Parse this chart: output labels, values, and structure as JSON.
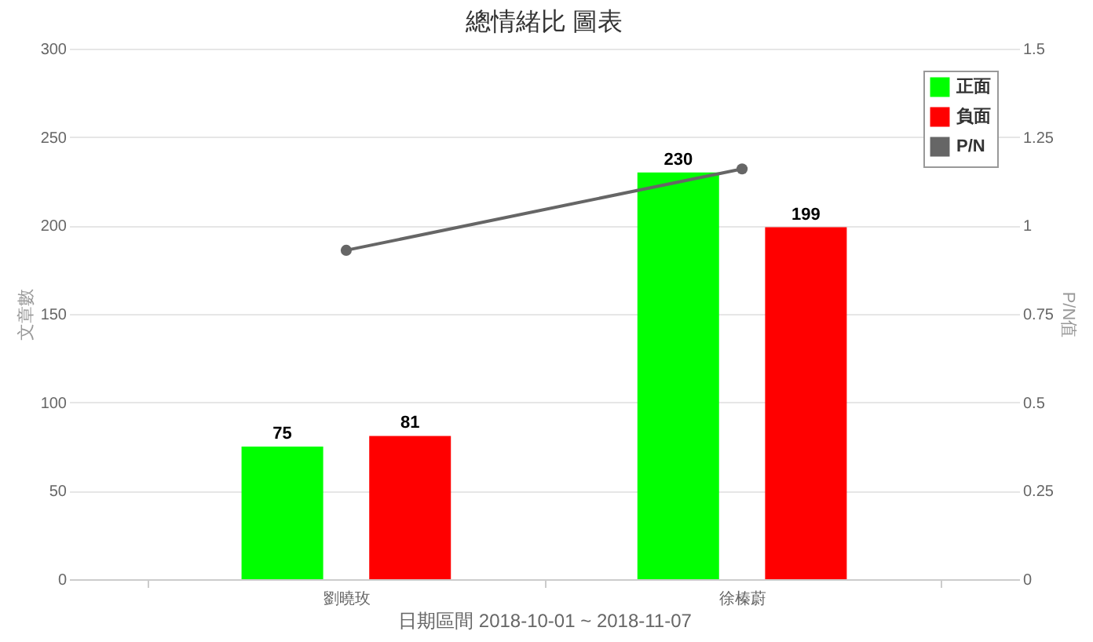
{
  "chart_data": {
    "type": "bar",
    "title": "總情緒比 圖表",
    "xlabel": "日期區間 2018-10-01 ~ 2018-11-07",
    "ylabel": "文章數",
    "y2label": "P/N值",
    "categories": [
      "劉曉玫",
      "徐榛蔚"
    ],
    "series": [
      {
        "name": "正面",
        "color": "#00ff00",
        "values": [
          75,
          230
        ],
        "value_labels": [
          "75",
          "230"
        ]
      },
      {
        "name": "負面",
        "color": "#ff0000",
        "values": [
          81,
          199
        ],
        "value_labels": [
          "81",
          "199"
        ]
      },
      {
        "name": "P/N",
        "type": "line",
        "axis": "y2",
        "color": "#666666",
        "values": [
          0.93,
          1.16
        ]
      }
    ],
    "ylim": [
      0,
      300
    ],
    "yticks": [
      0,
      50,
      100,
      150,
      200,
      250,
      300
    ],
    "y2lim": [
      0,
      1.5
    ],
    "y2ticks": [
      0,
      0.25,
      0.5,
      0.75,
      1,
      1.25,
      1.5
    ],
    "grid": "y",
    "legend": "top right",
    "marker": "circle",
    "line_style": "solid"
  }
}
